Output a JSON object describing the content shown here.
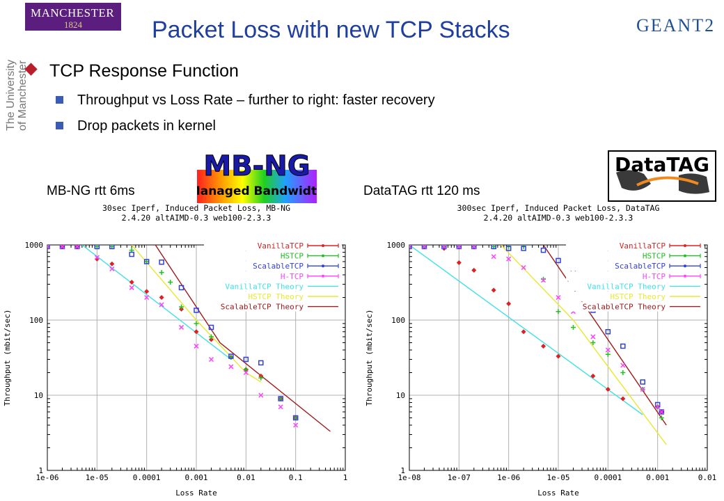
{
  "header": {
    "univ_logo_line1": "MANCHESTER",
    "univ_logo_line2": "1824",
    "univ_side_line1": "The University",
    "univ_side_line2": "of Manchester",
    "title": "Packet Loss with new TCP Stacks",
    "partner_logo": "GEANT2"
  },
  "bullets": {
    "main": "TCP Response Function",
    "subs": [
      "Throughput vs Loss Rate – further to right: faster recovery",
      "Drop packets in kernel"
    ]
  },
  "logos": {
    "mbng_line1": "MB-NG",
    "mbng_line2": "Managed Bandwidth",
    "datatag": "DataTAG"
  },
  "labels": {
    "left": "MB-NG rtt 6ms",
    "right": "DataTAG rtt 120 ms"
  },
  "colors": {
    "title": "#1f3f9f",
    "VanillaTCP": "#e02020",
    "HSTCP": "#20c020",
    "ScalableTCP": "#3040e0",
    "H-TCP": "#ff40ff",
    "VanillaTCP Theory": "#40e0e8",
    "HSTCP Theory": "#e8e830",
    "ScalableTCP Theory": "#a01818"
  },
  "chart_data": [
    {
      "type": "scatter",
      "title": "30sec Iperf, Induced Packet Loss, MB-NG",
      "subtitle": "2.4.20 altAIMD-0.3 web100-2.3.3",
      "xlabel": "Loss Rate",
      "ylabel": "Throughput (mbit/sec)",
      "xscale": "log",
      "yscale": "log",
      "xlim": [
        1e-06,
        1
      ],
      "ylim": [
        1,
        1000
      ],
      "xticks": [
        "1e-06",
        "1e-05",
        "0.0001",
        "0.001",
        "0.01",
        "0.1",
        "1"
      ],
      "yticks": [
        "1",
        "10",
        "100",
        "1000"
      ],
      "grid": true,
      "legend": "top-right",
      "series": [
        {
          "name": "VanillaTCP",
          "kind": "points",
          "points": [
            [
              1e-06,
              950
            ],
            [
              2e-06,
              950
            ],
            [
              4e-06,
              950
            ],
            [
              1e-05,
              650
            ],
            [
              2e-05,
              560
            ],
            [
              5e-05,
              320
            ],
            [
              0.0001,
              240
            ],
            [
              0.0002,
              200
            ],
            [
              0.0005,
              140
            ],
            [
              0.001,
              70
            ],
            [
              0.002,
              55
            ],
            [
              0.005,
              32
            ],
            [
              0.01,
              22
            ],
            [
              0.02,
              18
            ],
            [
              0.05,
              9
            ],
            [
              0.1,
              5
            ]
          ]
        },
        {
          "name": "HSTCP",
          "kind": "points",
          "points": [
            [
              1e-06,
              950
            ],
            [
              1e-05,
              950
            ],
            [
              2e-05,
              950
            ],
            [
              5e-05,
              850
            ],
            [
              0.0001,
              600
            ],
            [
              0.0002,
              430
            ],
            [
              0.0003,
              320
            ],
            [
              0.0005,
              150
            ],
            [
              0.001,
              90
            ],
            [
              0.002,
              60
            ],
            [
              0.005,
              32
            ],
            [
              0.01,
              22
            ],
            [
              0.02,
              17
            ],
            [
              0.05,
              9
            ],
            [
              0.1,
              5
            ]
          ]
        },
        {
          "name": "ScalableTCP",
          "kind": "points",
          "points": [
            [
              1e-06,
              950
            ],
            [
              2e-06,
              950
            ],
            [
              4e-06,
              950
            ],
            [
              1e-05,
              950
            ],
            [
              2e-05,
              950
            ],
            [
              5e-05,
              750
            ],
            [
              0.0001,
              600
            ],
            [
              0.0002,
              590
            ],
            [
              0.0005,
              270
            ],
            [
              0.001,
              135
            ],
            [
              0.002,
              80
            ],
            [
              0.005,
              33
            ],
            [
              0.01,
              30
            ],
            [
              0.02,
              27
            ],
            [
              0.05,
              9
            ],
            [
              0.1,
              5
            ]
          ]
        },
        {
          "name": "H-TCP",
          "kind": "points",
          "points": [
            [
              1e-06,
              950
            ],
            [
              2e-06,
              950
            ],
            [
              4e-06,
              950
            ],
            [
              1e-05,
              680
            ],
            [
              2e-05,
              480
            ],
            [
              5e-05,
              270
            ],
            [
              0.0001,
              200
            ],
            [
              0.0002,
              160
            ],
            [
              0.0005,
              80
            ],
            [
              0.001,
              45
            ],
            [
              0.002,
              30
            ],
            [
              0.005,
              24
            ],
            [
              0.01,
              20
            ],
            [
              0.02,
              10
            ],
            [
              0.05,
              7
            ],
            [
              0.1,
              4
            ]
          ]
        },
        {
          "name": "VanillaTCP Theory",
          "kind": "line",
          "points": [
            [
              5e-06,
              1000
            ],
            [
              0.005,
              30
            ]
          ]
        },
        {
          "name": "HSTCP Theory",
          "kind": "line",
          "points": [
            [
              5e-05,
              1000
            ],
            [
              0.001,
              100
            ],
            [
              0.01,
              20
            ],
            [
              0.02,
              15
            ]
          ]
        },
        {
          "name": "ScalableTCP Theory",
          "kind": "line",
          "points": [
            [
              0.00015,
              1000
            ],
            [
              0.003,
              50
            ],
            [
              0.5,
              3.3
            ]
          ]
        }
      ]
    },
    {
      "type": "scatter",
      "title": "300sec Iperf, Induced Packet Loss, DataTAG",
      "subtitle": "2.4.20 altAIMD-0.3 web100-2.3.3",
      "xlabel": "Loss Rate",
      "ylabel": "Throughput (mbit/sec)",
      "xscale": "log",
      "yscale": "log",
      "xlim": [
        1e-08,
        0.01
      ],
      "ylim": [
        1,
        1000
      ],
      "xticks": [
        "1e-08",
        "1e-07",
        "1e-06",
        "1e-05",
        "0.0001",
        "0.001",
        "0.01"
      ],
      "yticks": [
        "1",
        "10",
        "100",
        "1000"
      ],
      "grid": true,
      "legend": "top-right",
      "series": [
        {
          "name": "VanillaTCP",
          "kind": "points",
          "points": [
            [
              1e-08,
              950
            ],
            [
              2e-08,
              950
            ],
            [
              5e-08,
              900
            ],
            [
              1e-07,
              580
            ],
            [
              2e-07,
              460
            ],
            [
              5e-07,
              250
            ],
            [
              1e-06,
              165
            ],
            [
              2e-06,
              70
            ],
            [
              5e-06,
              45
            ],
            [
              1e-05,
              33
            ],
            [
              5e-05,
              18
            ],
            [
              0.0001,
              12
            ],
            [
              0.0002,
              9
            ],
            [
              0.001,
              7
            ],
            [
              0.0012,
              6
            ]
          ]
        },
        {
          "name": "HSTCP",
          "kind": "points",
          "points": [
            [
              1e-08,
              950
            ],
            [
              2e-08,
              950
            ],
            [
              5e-08,
              950
            ],
            [
              1e-07,
              950
            ],
            [
              2e-07,
              950
            ],
            [
              5e-07,
              950
            ],
            [
              1e-06,
              950
            ],
            [
              2e-06,
              950
            ],
            [
              5e-06,
              350
            ],
            [
              1e-05,
              130
            ],
            [
              2e-05,
              80
            ],
            [
              5e-05,
              50
            ],
            [
              0.0001,
              35
            ],
            [
              0.0002,
              20
            ],
            [
              0.0005,
              12
            ],
            [
              0.001,
              7
            ],
            [
              0.0012,
              5
            ]
          ]
        },
        {
          "name": "ScalableTCP",
          "kind": "points",
          "points": [
            [
              1e-08,
              950
            ],
            [
              2e-08,
              950
            ],
            [
              5e-08,
              950
            ],
            [
              1e-07,
              950
            ],
            [
              2e-07,
              950
            ],
            [
              5e-07,
              950
            ],
            [
              1e-06,
              900
            ],
            [
              2e-06,
              900
            ],
            [
              5e-06,
              850
            ],
            [
              1e-05,
              620
            ],
            [
              2e-05,
              450
            ],
            [
              5e-05,
              135
            ],
            [
              0.0001,
              70
            ],
            [
              0.0002,
              45
            ],
            [
              0.0005,
              15
            ],
            [
              0.001,
              7.5
            ],
            [
              0.0012,
              6
            ]
          ]
        },
        {
          "name": "H-TCP",
          "kind": "points",
          "points": [
            [
              1e-08,
              950
            ],
            [
              2e-08,
              950
            ],
            [
              5e-08,
              950
            ],
            [
              1e-07,
              950
            ],
            [
              2e-07,
              950
            ],
            [
              5e-07,
              700
            ],
            [
              1e-06,
              650
            ],
            [
              2e-06,
              500
            ],
            [
              5e-06,
              340
            ],
            [
              1e-05,
              200
            ],
            [
              2e-05,
              130
            ],
            [
              5e-05,
              60
            ],
            [
              0.0001,
              40
            ],
            [
              0.0002,
              25
            ],
            [
              0.0005,
              12
            ],
            [
              0.001,
              7
            ],
            [
              0.0012,
              6
            ]
          ]
        },
        {
          "name": "VanillaTCP Theory",
          "kind": "line",
          "points": [
            [
              1e-08,
              1000
            ],
            [
              0.0005,
              5.5
            ]
          ]
        },
        {
          "name": "HSTCP Theory",
          "kind": "line",
          "points": [
            [
              7e-07,
              1000
            ],
            [
              2e-05,
              100
            ],
            [
              0.0015,
              2.2
            ]
          ]
        },
        {
          "name": "ScalableTCP Theory",
          "kind": "line",
          "points": [
            [
              5e-06,
              1000
            ],
            [
              0.0015,
              4
            ]
          ]
        }
      ]
    }
  ]
}
